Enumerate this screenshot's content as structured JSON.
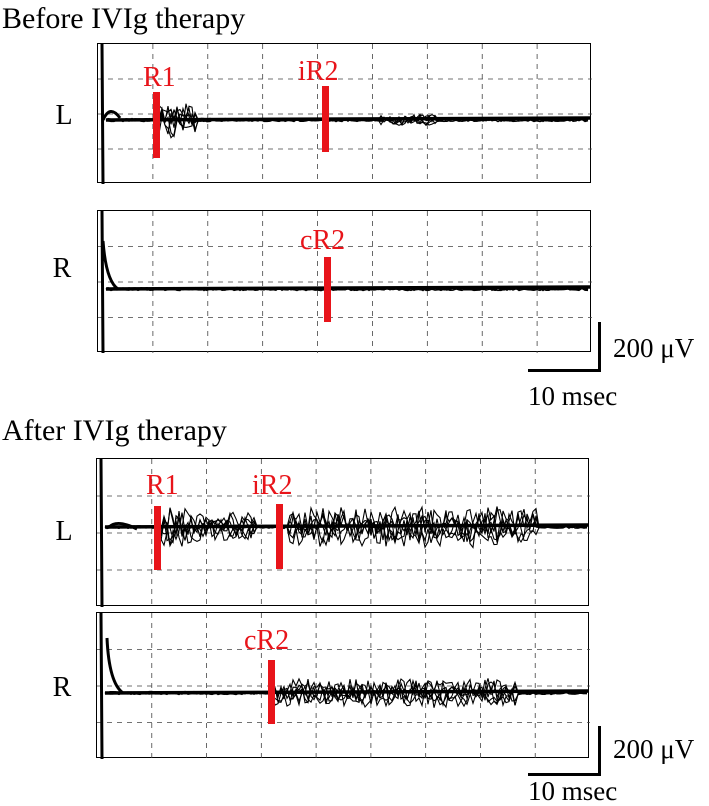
{
  "sections": [
    {
      "id": "before",
      "title": "Before IVIg therapy",
      "panels": [
        {
          "side": "L",
          "markers": [
            {
              "label": "R1"
            },
            {
              "label": "iR2"
            }
          ]
        },
        {
          "side": "R",
          "markers": [
            {
              "label": "cR2"
            }
          ]
        }
      ],
      "scale": {
        "amplitude": "200 μV",
        "time": "10 msec"
      }
    },
    {
      "id": "after",
      "title": "After IVIg therapy",
      "panels": [
        {
          "side": "L",
          "markers": [
            {
              "label": "R1"
            },
            {
              "label": "iR2"
            }
          ]
        },
        {
          "side": "R",
          "markers": [
            {
              "label": "cR2"
            }
          ]
        }
      ],
      "scale": {
        "amplitude": "200 μV",
        "time": "10 msec"
      }
    }
  ],
  "colors": {
    "marker": "#e8141a",
    "trace": "#000000",
    "grid": "#444444"
  }
}
